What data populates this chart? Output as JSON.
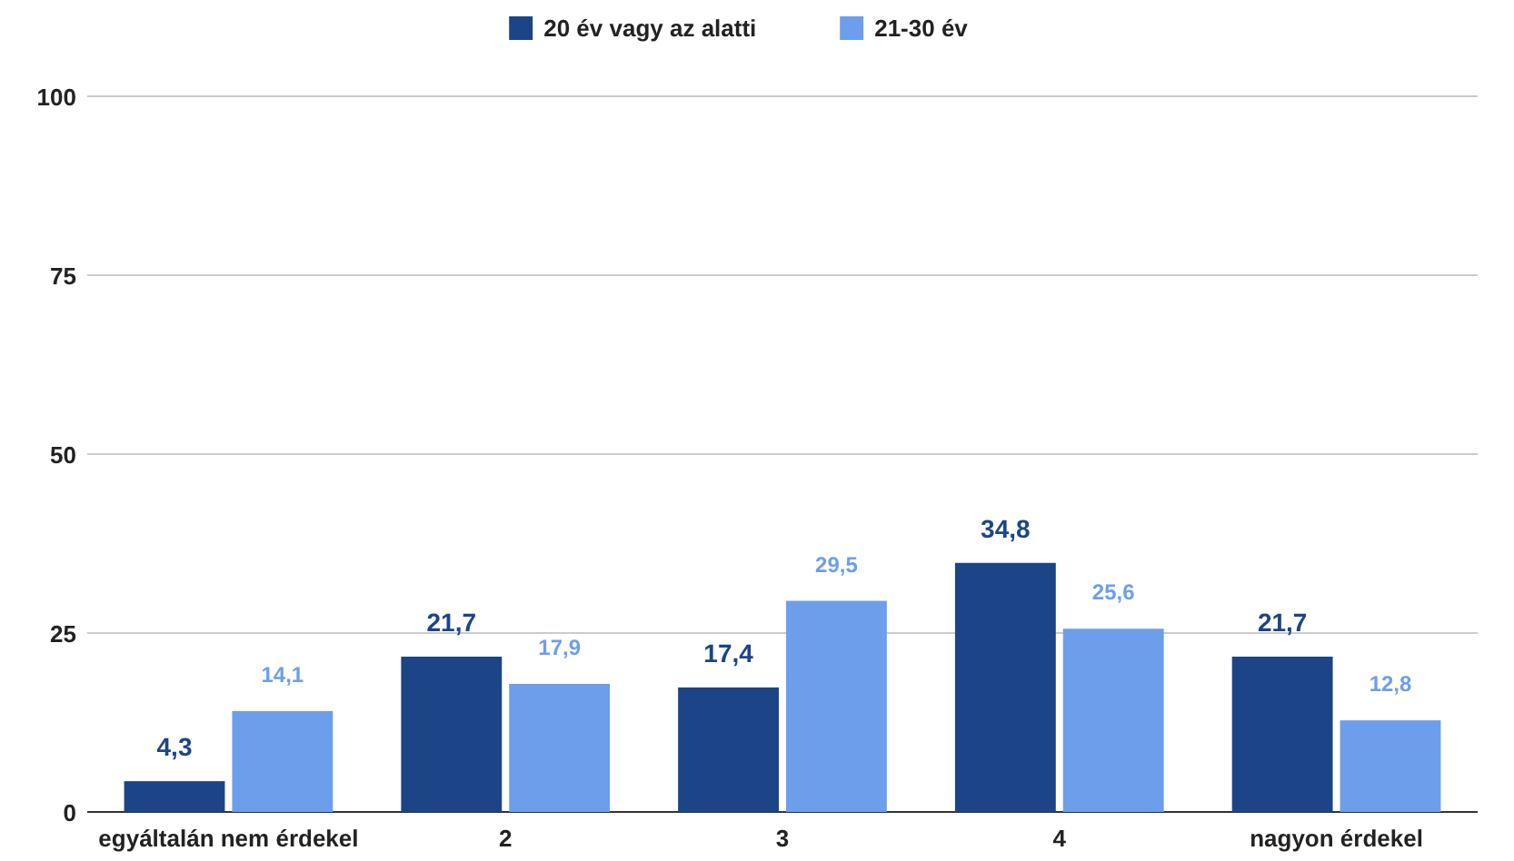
{
  "chart_data": {
    "type": "bar",
    "categories": [
      "egyáltalán nem érdekel",
      "2",
      "3",
      "4",
      "nagyon érdekel"
    ],
    "series": [
      {
        "name": "20 év vagy az alatti",
        "color": "#1c4587",
        "values": [
          4.3,
          21.7,
          17.4,
          34.8,
          21.7
        ],
        "value_labels": [
          "4,3",
          "21,7",
          "17,4",
          "34,8",
          "21,7"
        ]
      },
      {
        "name": "21-30 év",
        "color": "#6d9eeb",
        "values": [
          14.1,
          17.9,
          29.5,
          25.6,
          12.8
        ],
        "value_labels": [
          "14,1",
          "17,9",
          "29,5",
          "25,6",
          "12,8"
        ]
      }
    ],
    "ylim": [
      0,
      100
    ],
    "yticks": [
      0,
      25,
      50,
      75,
      100
    ],
    "grid": "y",
    "legend": "top"
  }
}
